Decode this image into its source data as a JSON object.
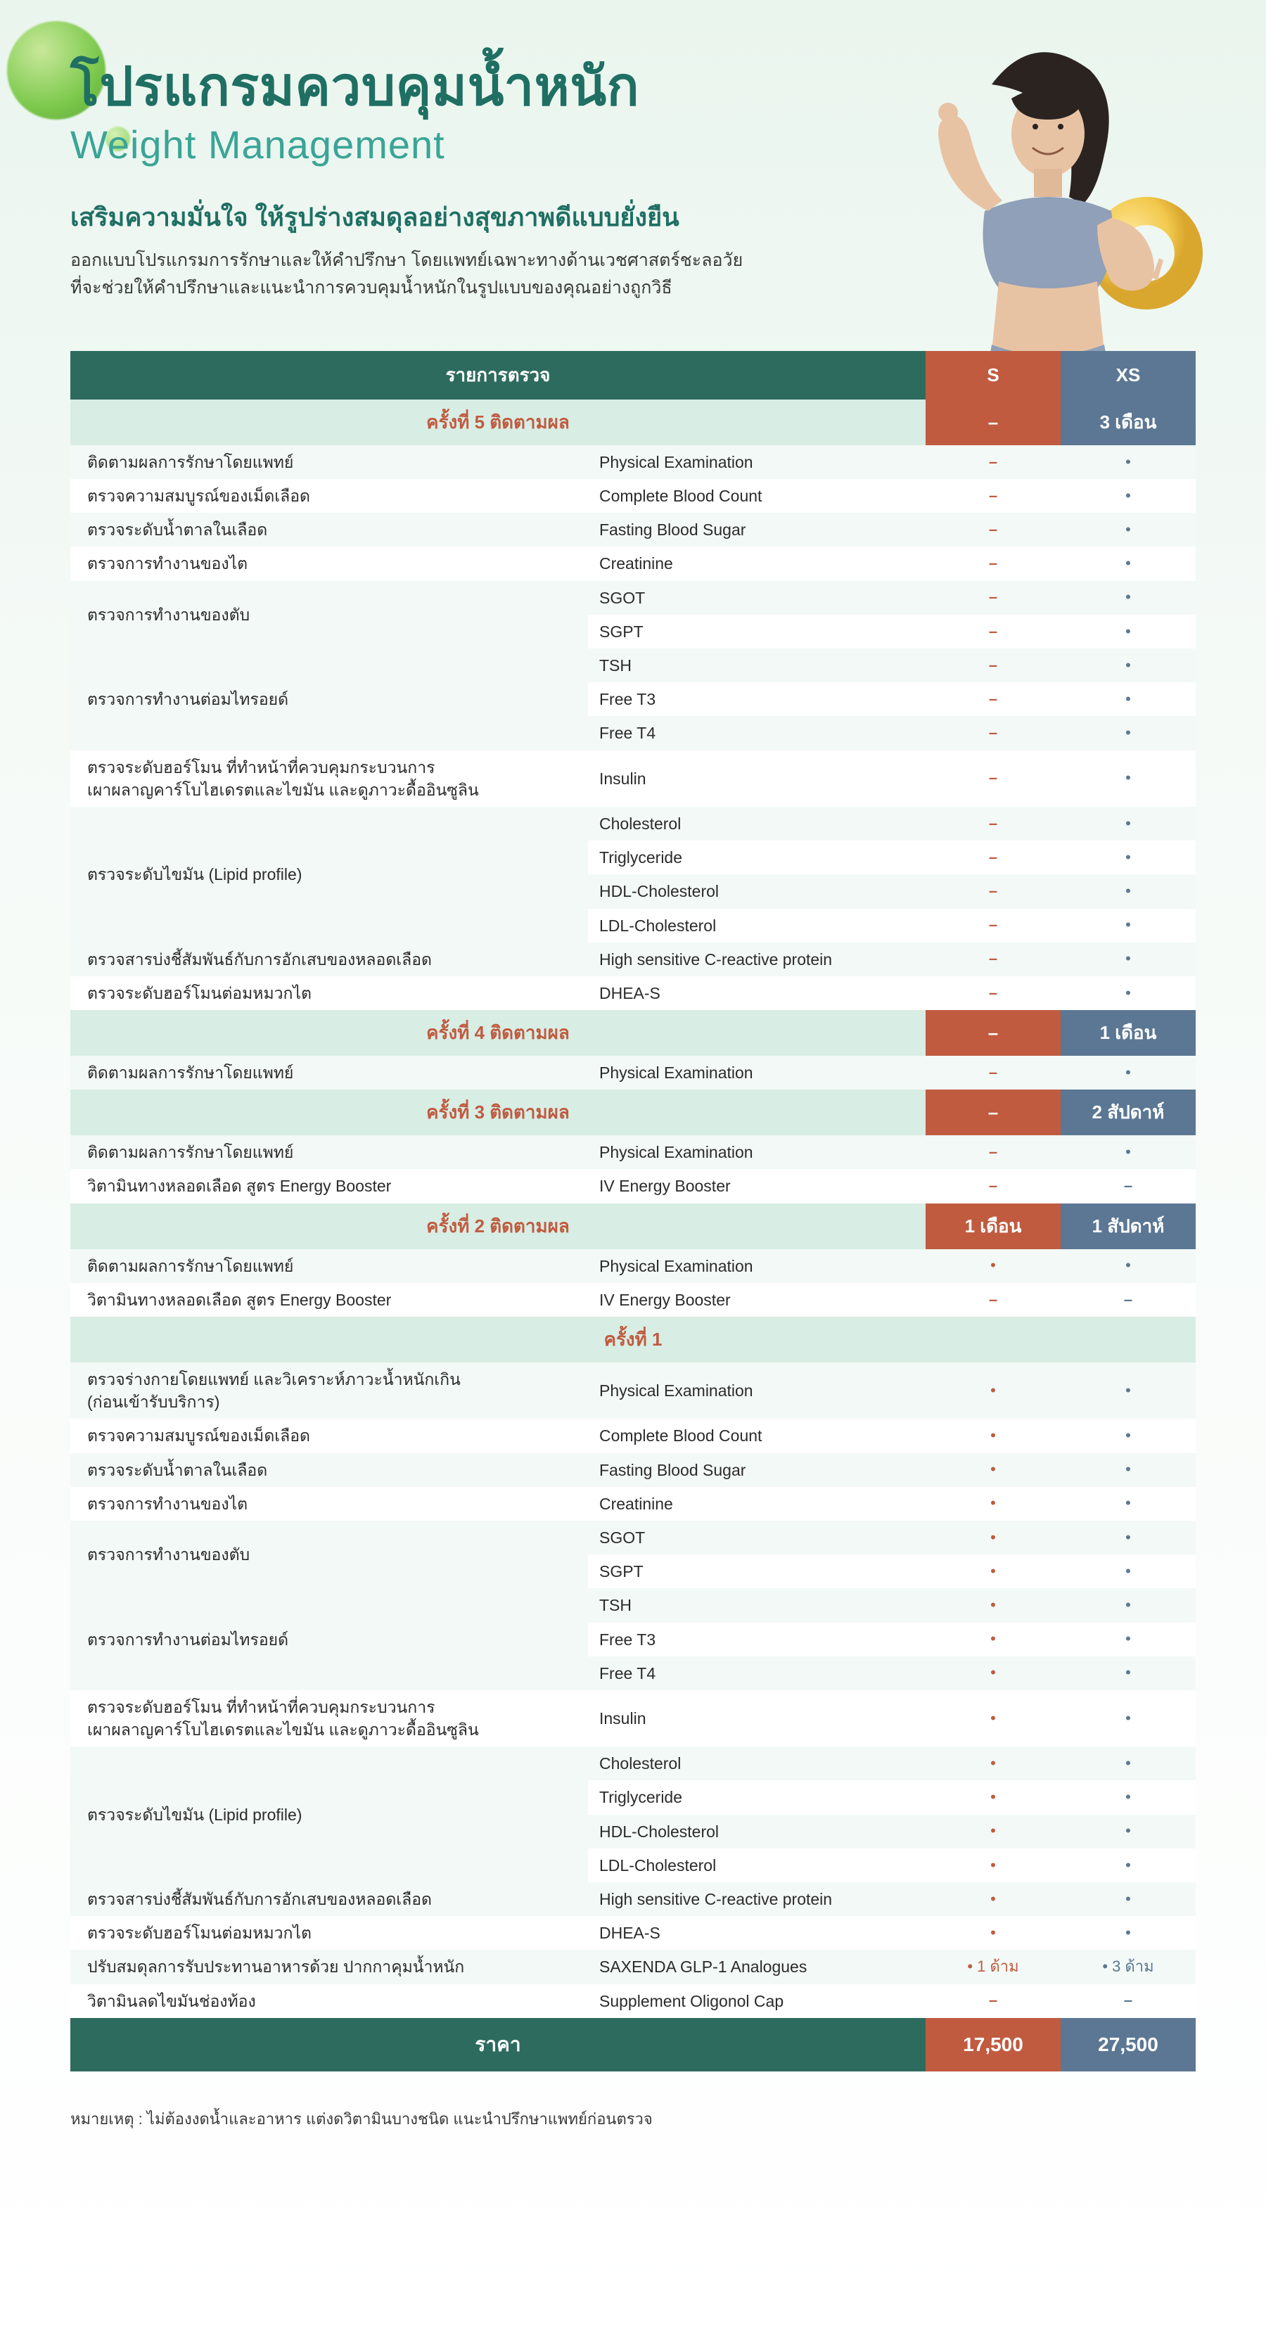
{
  "colors": {
    "teal_dark": "#2d6b5e",
    "teal_text": "#1f6f63",
    "teal_light": "#3aa596",
    "mint_row": "#d8ede4",
    "stripe_a": "#f3f9f6",
    "stripe_b": "#ffffff",
    "rust": "#c05b40",
    "slate": "#5b7794",
    "body_text": "#2b2b2b"
  },
  "header": {
    "title_th": "โปรแกรมควบคุมน้ำหนัก",
    "title_en": "Weight Management",
    "subtitle": "เสริมความมั่นใจ ให้รูปร่างสมดุลอย่างสุขภาพดีแบบยั่งยืน",
    "desc_line1": "ออกแบบโปรแกรมการรักษาและให้คำปรึกษา โดยแพทย์เฉพาะทางด้านเวชศาสตร์ชะลอวัย",
    "desc_line2": "ที่จะช่วยให้คำปรึกษาและแนะนำการควบคุมน้ำหนักในรูปแบบของคุณอย่างถูกวิธี"
  },
  "table_header": {
    "main": "รายการตรวจ",
    "s": "S",
    "xs": "XS"
  },
  "sections": [
    {
      "title": "ครั้งที่ 1",
      "s_label": "",
      "xs_label": "",
      "rows": [
        {
          "th": "ตรวจร่างกายโดยแพทย์ และวิเคราะห์ภาวะน้ำหนักเกิน\n(ก่อนเข้ารับบริการ)",
          "en": "Physical Examination",
          "s": "dot",
          "xs": "dot"
        },
        {
          "th": "ตรวจความสมบูรณ์ของเม็ดเลือด",
          "en": "Complete Blood Count",
          "s": "dot",
          "xs": "dot"
        },
        {
          "th": "ตรวจระดับน้ำตาลในเลือด",
          "en": "Fasting Blood Sugar",
          "s": "dot",
          "xs": "dot"
        },
        {
          "th": "ตรวจการทำงานของไต",
          "en": "Creatinine",
          "s": "dot",
          "xs": "dot"
        },
        {
          "th": "ตรวจการทำงานของตับ",
          "th_rowspan": 2,
          "en": "SGOT",
          "s": "dot",
          "xs": "dot"
        },
        {
          "en": "SGPT",
          "s": "dot",
          "xs": "dot"
        },
        {
          "th": "ตรวจการทำงานต่อมไทรอยด์",
          "th_rowspan": 3,
          "en": "TSH",
          "s": "dot",
          "xs": "dot"
        },
        {
          "en": "Free T3",
          "s": "dot",
          "xs": "dot"
        },
        {
          "en": "Free T4",
          "s": "dot",
          "xs": "dot"
        },
        {
          "th": "ตรวจระดับฮอร์โมน ที่ทำหน้าที่ควบคุมกระบวนการ\nเผาผลาญคาร์โบไฮเดรตและไขมัน และดูภาวะดื้ออินซูลิน",
          "en": "Insulin",
          "s": "dot",
          "xs": "dot"
        },
        {
          "th": "ตรวจระดับไขมัน (Lipid profile)",
          "th_rowspan": 4,
          "en": "Cholesterol",
          "s": "dot",
          "xs": "dot"
        },
        {
          "en": "Triglyceride",
          "s": "dot",
          "xs": "dot"
        },
        {
          "en": "HDL-Cholesterol",
          "s": "dot",
          "xs": "dot"
        },
        {
          "en": "LDL-Cholesterol",
          "s": "dot",
          "xs": "dot"
        },
        {
          "th": "ตรวจสารบ่งชี้สัมพันธ์กับการอักเสบของหลอดเลือด",
          "en": "High sensitive C-reactive protein",
          "s": "dot",
          "xs": "dot"
        },
        {
          "th": "ตรวจระดับฮอร์โมนต่อมหมวกไต",
          "en": "DHEA-S",
          "s": "dot",
          "xs": "dot"
        },
        {
          "th": "ปรับสมดุลการรับประทานอาหารด้วย ปากกาคุมน้ำหนัก",
          "en": "SAXENDA GLP-1 Analogues",
          "s": "txt:• 1 ด้าม",
          "xs": "txt:• 3 ด้าม"
        },
        {
          "th": "วิตามินลดไขมันช่องท้อง",
          "en": "Supplement Oligonol Cap",
          "s": "dash",
          "xs": "dash"
        }
      ]
    },
    {
      "title": "ครั้งที่ 2 ติดตามผล",
      "s_label": "1 เดือน",
      "xs_label": "1 สัปดาห์",
      "rows": [
        {
          "th": "ติดตามผลการรักษาโดยแพทย์",
          "en": "Physical Examination",
          "s": "dot",
          "xs": "dot"
        },
        {
          "th": "วิตามินทางหลอดเลือด สูตร Energy Booster",
          "en": "IV Energy Booster",
          "s": "dash",
          "xs": "dash"
        }
      ]
    },
    {
      "title": "ครั้งที่ 3 ติดตามผล",
      "s_label": "–",
      "xs_label": "2 สัปดาห์",
      "rows": [
        {
          "th": "ติดตามผลการรักษาโดยแพทย์",
          "en": "Physical Examination",
          "s": "dash",
          "xs": "dot"
        },
        {
          "th": "วิตามินทางหลอดเลือด สูตร Energy Booster",
          "en": "IV Energy Booster",
          "s": "dash",
          "xs": "dash"
        }
      ]
    },
    {
      "title": "ครั้งที่ 4 ติดตามผล",
      "s_label": "–",
      "xs_label": "1 เดือน",
      "rows": [
        {
          "th": "ติดตามผลการรักษาโดยแพทย์",
          "en": "Physical Examination",
          "s": "dash",
          "xs": "dot"
        }
      ]
    },
    {
      "title": "ครั้งที่ 5 ติดตามผล",
      "s_label": "–",
      "xs_label": "3 เดือน",
      "rows": [
        {
          "th": "ติดตามผลการรักษาโดยแพทย์",
          "en": "Physical Examination",
          "s": "dash",
          "xs": "dot"
        },
        {
          "th": "ตรวจความสมบูรณ์ของเม็ดเลือด",
          "en": "Complete Blood Count",
          "s": "dash",
          "xs": "dot"
        },
        {
          "th": "ตรวจระดับน้ำตาลในเลือด",
          "en": "Fasting Blood Sugar",
          "s": "dash",
          "xs": "dot"
        },
        {
          "th": "ตรวจการทำงานของไต",
          "en": "Creatinine",
          "s": "dash",
          "xs": "dot"
        },
        {
          "th": "ตรวจการทำงานของตับ",
          "th_rowspan": 2,
          "en": "SGOT",
          "s": "dash",
          "xs": "dot"
        },
        {
          "en": "SGPT",
          "s": "dash",
          "xs": "dot"
        },
        {
          "th": "ตรวจการทำงานต่อมไทรอยด์",
          "th_rowspan": 3,
          "en": "TSH",
          "s": "dash",
          "xs": "dot"
        },
        {
          "en": "Free T3",
          "s": "dash",
          "xs": "dot"
        },
        {
          "en": "Free T4",
          "s": "dash",
          "xs": "dot"
        },
        {
          "th": "ตรวจระดับฮอร์โมน ที่ทำหน้าที่ควบคุมกระบวนการ\nเผาผลาญคาร์โบไฮเดรตและไขมัน และดูภาวะดื้ออินซูลิน",
          "en": "Insulin",
          "s": "dash",
          "xs": "dot"
        },
        {
          "th": "ตรวจระดับไขมัน (Lipid profile)",
          "th_rowspan": 4,
          "en": "Cholesterol",
          "s": "dash",
          "xs": "dot"
        },
        {
          "en": "Triglyceride",
          "s": "dash",
          "xs": "dot"
        },
        {
          "en": "HDL-Cholesterol",
          "s": "dash",
          "xs": "dot"
        },
        {
          "en": "LDL-Cholesterol",
          "s": "dash",
          "xs": "dot"
        },
        {
          "th": "ตรวจสารบ่งชี้สัมพันธ์กับการอักเสบของหลอดเลือด",
          "en": "High sensitive C-reactive protein",
          "s": "dash",
          "xs": "dot"
        },
        {
          "th": "ตรวจระดับฮอร์โมนต่อมหมวกไต",
          "en": "DHEA-S",
          "s": "dash",
          "xs": "dot"
        }
      ]
    }
  ],
  "price": {
    "label": "ราคา",
    "s": "17,500",
    "xs": "27,500"
  },
  "note": "หมายเหตุ : ไม่ต้องงดน้ำและอาหาร แต่งดวิตามินบางชนิด แนะนำปรึกษาแพทย์ก่อนตรวจ"
}
